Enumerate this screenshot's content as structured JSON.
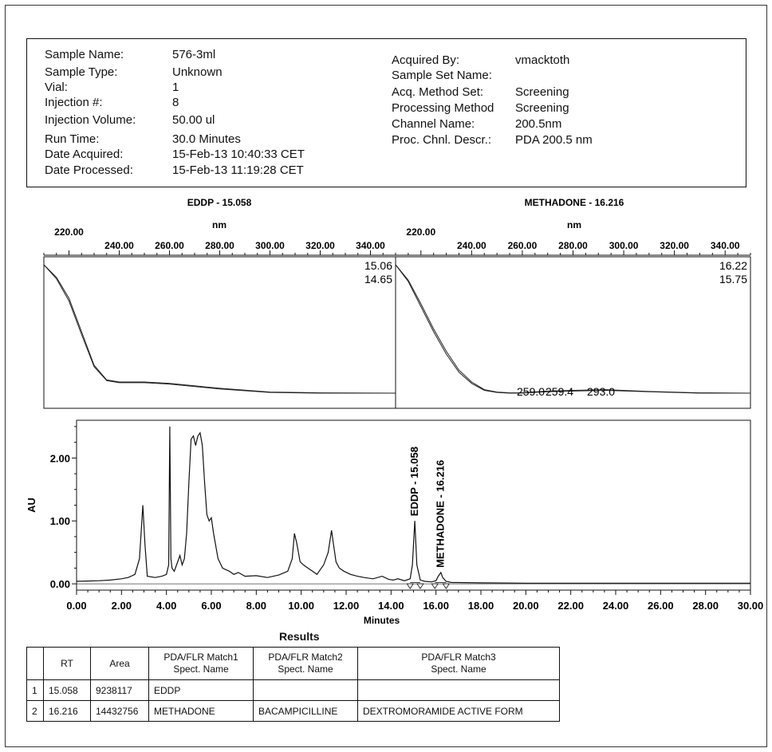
{
  "sample_info": {
    "left": [
      {
        "label": "Sample Name:",
        "value": "576-3ml"
      },
      {
        "label": "Sample Type:",
        "value": "Unknown"
      },
      {
        "label": "Vial:",
        "value": "1"
      },
      {
        "label": "Injection #:",
        "value": "8"
      },
      {
        "label": "Injection Volume:",
        "value": "50.00 ul"
      },
      {
        "label": "Run Time:",
        "value": "30.0 Minutes"
      },
      {
        "label": "Date Acquired:",
        "value": "15-Feb-13 10:40:33 CET"
      },
      {
        "label": "Date Processed:",
        "value": "15-Feb-13 11:19:28 CET"
      }
    ],
    "right": [
      {
        "label": "Acquired By:",
        "value": "vmacktoth"
      },
      {
        "label": "Sample Set Name:",
        "value": ""
      },
      {
        "label": "Acq. Method Set:",
        "value": "Screening"
      },
      {
        "label": "Processing Method",
        "value": "Screening"
      },
      {
        "label": "Channel Name:",
        "value": "200.5nm"
      },
      {
        "label": "Proc. Chnl. Descr.:",
        "value": "PDA 200.5 nm"
      }
    ]
  },
  "chart_data": [
    {
      "type": "line",
      "title": "EDDP - 15.058",
      "xlabel": "nm",
      "xlim": [
        210,
        350
      ],
      "x_ticks": [
        220,
        240,
        260,
        280,
        300,
        320,
        340
      ],
      "x_tick_labels": [
        "220.00",
        "240.00",
        "260.00",
        "280.00",
        "300.00",
        "320.00",
        "340.00"
      ],
      "annotations": [
        "15.06",
        "14.65"
      ],
      "series": [
        {
          "x": [
            210,
            215,
            220,
            225,
            230,
            235,
            240,
            250,
            260,
            280,
            300,
            320,
            350
          ],
          "y": [
            1.0,
            0.9,
            0.74,
            0.5,
            0.27,
            0.17,
            0.155,
            0.155,
            0.145,
            0.11,
            0.085,
            0.08,
            0.08
          ]
        },
        {
          "x": [
            210,
            215,
            220,
            225,
            230,
            235,
            240,
            250,
            260,
            280,
            300,
            320,
            350
          ],
          "y": [
            1.0,
            0.91,
            0.76,
            0.52,
            0.28,
            0.175,
            0.16,
            0.16,
            0.15,
            0.115,
            0.088,
            0.082,
            0.08
          ]
        }
      ]
    },
    {
      "type": "line",
      "title": "METHADONE - 16.216",
      "xlabel": "nm",
      "xlim": [
        210,
        350
      ],
      "x_ticks": [
        220,
        240,
        260,
        280,
        300,
        320,
        340
      ],
      "x_tick_labels": [
        "220.00",
        "240.00",
        "260.00",
        "280.00",
        "300.00",
        "320.00",
        "340.00"
      ],
      "annotations": [
        "16.22",
        "15.75",
        "259.0",
        "259.4",
        "293.0"
      ],
      "series": [
        {
          "x": [
            210,
            215,
            220,
            225,
            230,
            235,
            240,
            245,
            250,
            255,
            259,
            270,
            280,
            293,
            310,
            330,
            350
          ],
          "y": [
            1.0,
            0.88,
            0.7,
            0.52,
            0.36,
            0.23,
            0.15,
            0.1,
            0.085,
            0.08,
            0.08,
            0.09,
            0.095,
            0.1,
            0.09,
            0.08,
            0.08
          ]
        },
        {
          "x": [
            210,
            215,
            220,
            225,
            230,
            235,
            240,
            245,
            250,
            255,
            259,
            270,
            280,
            293,
            310,
            330,
            350
          ],
          "y": [
            1.0,
            0.89,
            0.72,
            0.54,
            0.38,
            0.245,
            0.16,
            0.105,
            0.088,
            0.082,
            0.082,
            0.095,
            0.1,
            0.105,
            0.092,
            0.082,
            0.08
          ]
        }
      ]
    },
    {
      "type": "line",
      "title": "",
      "xlabel": "Minutes",
      "ylabel": "AU",
      "xlim": [
        0,
        30
      ],
      "ylim": [
        -0.1,
        2.6
      ],
      "x_ticks": [
        0,
        2,
        4,
        6,
        8,
        10,
        12,
        14,
        16,
        18,
        20,
        22,
        24,
        26,
        28,
        30
      ],
      "x_tick_labels": [
        "0.00",
        "2.00",
        "4.00",
        "6.00",
        "8.00",
        "10.00",
        "12.00",
        "14.00",
        "16.00",
        "18.00",
        "20.00",
        "22.00",
        "24.00",
        "26.00",
        "28.00",
        "30.00"
      ],
      "y_ticks": [
        0,
        1,
        2
      ],
      "y_tick_labels": [
        "0.00",
        "1.00",
        "2.00"
      ],
      "peak_labels": [
        {
          "text": "EDDP - 15.058",
          "x": 15.058,
          "y": 1.0
        },
        {
          "text": "METHADONE - 16.216",
          "x": 16.216,
          "y": 0.18
        }
      ],
      "series": [
        {
          "x": [
            0,
            0.5,
            1,
            1.5,
            2,
            2.3,
            2.6,
            2.8,
            2.95,
            3.05,
            3.15,
            3.5,
            3.8,
            4.0,
            4.1,
            4.15,
            4.2,
            4.25,
            4.35,
            4.5,
            4.6,
            4.7,
            4.8,
            4.9,
            5.0,
            5.1,
            5.2,
            5.3,
            5.4,
            5.5,
            5.6,
            5.7,
            5.8,
            5.9,
            6.0,
            6.1,
            6.3,
            6.5,
            6.8,
            7.0,
            7.2,
            7.5,
            8.0,
            8.5,
            9.0,
            9.4,
            9.6,
            9.7,
            9.8,
            9.95,
            10.1,
            10.3,
            10.5,
            10.7,
            11.0,
            11.2,
            11.35,
            11.45,
            11.55,
            11.7,
            11.9,
            12.2,
            12.5,
            12.8,
            13.2,
            13.6,
            13.9,
            14.1,
            14.3,
            14.6,
            14.85,
            14.95,
            15.058,
            15.15,
            15.3,
            15.5,
            15.8,
            16.0,
            16.1,
            16.216,
            16.3,
            16.45,
            16.7,
            17.0,
            18.0,
            20.0,
            22.0,
            24.0,
            26.0,
            28.0,
            30.0
          ],
          "y": [
            0.04,
            0.045,
            0.05,
            0.06,
            0.08,
            0.1,
            0.15,
            0.4,
            1.25,
            0.6,
            0.12,
            0.1,
            0.12,
            0.15,
            0.3,
            2.5,
            0.4,
            0.25,
            0.2,
            0.35,
            0.45,
            0.3,
            0.4,
            0.8,
            1.6,
            2.3,
            2.35,
            2.2,
            2.35,
            2.4,
            2.2,
            1.6,
            1.1,
            1.0,
            1.05,
            0.8,
            0.4,
            0.25,
            0.2,
            0.15,
            0.18,
            0.12,
            0.13,
            0.1,
            0.14,
            0.2,
            0.4,
            0.8,
            0.65,
            0.35,
            0.3,
            0.25,
            0.2,
            0.15,
            0.3,
            0.5,
            0.85,
            0.6,
            0.35,
            0.25,
            0.2,
            0.15,
            0.12,
            0.1,
            0.08,
            0.12,
            0.07,
            0.06,
            0.08,
            0.05,
            0.08,
            0.3,
            1.0,
            0.3,
            0.06,
            0.04,
            0.03,
            0.05,
            0.12,
            0.18,
            0.1,
            0.04,
            0.02,
            0.02,
            0.015,
            0.01,
            0.01,
            0.01,
            0.01,
            0.01,
            0.01
          ]
        }
      ]
    }
  ],
  "results": {
    "title": "Results",
    "headers": [
      "",
      "RT",
      "Area",
      "PDA/FLR Match1\nSpect. Name",
      "PDA/FLR Match2\nSpect. Name",
      "PDA/FLR Match3\nSpect. Name"
    ],
    "rows": [
      [
        "1",
        "15.058",
        "9238117",
        "EDDP",
        "",
        ""
      ],
      [
        "2",
        "16.216",
        "14432756",
        "METHADONE",
        "BACAMPICILLINE",
        "DEXTROMORAMIDE ACTIVE FORM"
      ]
    ]
  }
}
